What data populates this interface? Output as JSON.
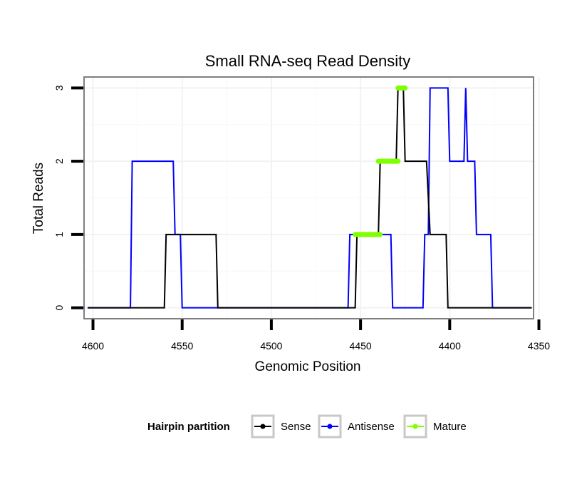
{
  "chart_data": {
    "type": "line",
    "title": "Small RNA-seq Read Density",
    "xlabel": "Genomic Position",
    "ylabel": "Total Reads",
    "xlim": [
      4605,
      4353
    ],
    "x_reversed": true,
    "xticks": [
      4600,
      4550,
      4500,
      4450,
      4400,
      4350
    ],
    "xtick_labels": [
      "4600",
      "4550",
      "4500",
      "4450",
      "4400",
      "4350"
    ],
    "ylim": [
      -0.15,
      3.15
    ],
    "yticks": [
      0,
      1,
      2,
      3
    ],
    "ytick_labels": [
      "0",
      "1",
      "2",
      "3"
    ],
    "grid": true,
    "legend": {
      "title": "Hairpin partition",
      "position": "bottom",
      "entries": [
        {
          "name": "Sense",
          "color": "#000000"
        },
        {
          "name": "Antisense",
          "color": "#0000ff"
        },
        {
          "name": "Mature",
          "color": "#7fff00"
        }
      ]
    },
    "series": [
      {
        "name": "Sense",
        "color": "#000000",
        "points": [
          [
            4603,
            0
          ],
          [
            4560,
            0
          ],
          [
            4559,
            1
          ],
          [
            4531,
            1
          ],
          [
            4530,
            0
          ],
          [
            4453,
            0
          ],
          [
            4452,
            1
          ],
          [
            4440,
            1
          ],
          [
            4439,
            2
          ],
          [
            4430,
            2
          ],
          [
            4429,
            3
          ],
          [
            4426,
            3
          ],
          [
            4425,
            2
          ],
          [
            4413,
            2
          ],
          [
            4411,
            1
          ],
          [
            4402,
            1
          ],
          [
            4401,
            0
          ],
          [
            4354,
            0
          ]
        ]
      },
      {
        "name": "Antisense",
        "color": "#0000ff",
        "points": [
          [
            4603,
            0
          ],
          [
            4579,
            0
          ],
          [
            4578,
            2
          ],
          [
            4555,
            2
          ],
          [
            4554,
            1
          ],
          [
            4551,
            1
          ],
          [
            4550,
            0
          ],
          [
            4457,
            0
          ],
          [
            4456,
            1
          ],
          [
            4433,
            1
          ],
          [
            4432,
            0
          ],
          [
            4415,
            0
          ],
          [
            4414,
            1
          ],
          [
            4412,
            1
          ],
          [
            4411,
            3
          ],
          [
            4401,
            3
          ],
          [
            4400,
            2
          ],
          [
            4394,
            2
          ],
          [
            4392,
            2
          ],
          [
            4391,
            3
          ],
          [
            4390,
            2
          ],
          [
            4386,
            2
          ],
          [
            4385,
            1
          ],
          [
            4377,
            1
          ],
          [
            4376,
            0
          ],
          [
            4354,
            0
          ]
        ]
      },
      {
        "name": "Mature",
        "color": "#7fff00",
        "segments": [
          {
            "x_start": 4453,
            "x_end": 4439,
            "y": 1
          },
          {
            "x_start": 4440,
            "x_end": 4429,
            "y": 2
          },
          {
            "x_start": 4429,
            "x_end": 4425,
            "y": 3
          }
        ]
      }
    ]
  }
}
